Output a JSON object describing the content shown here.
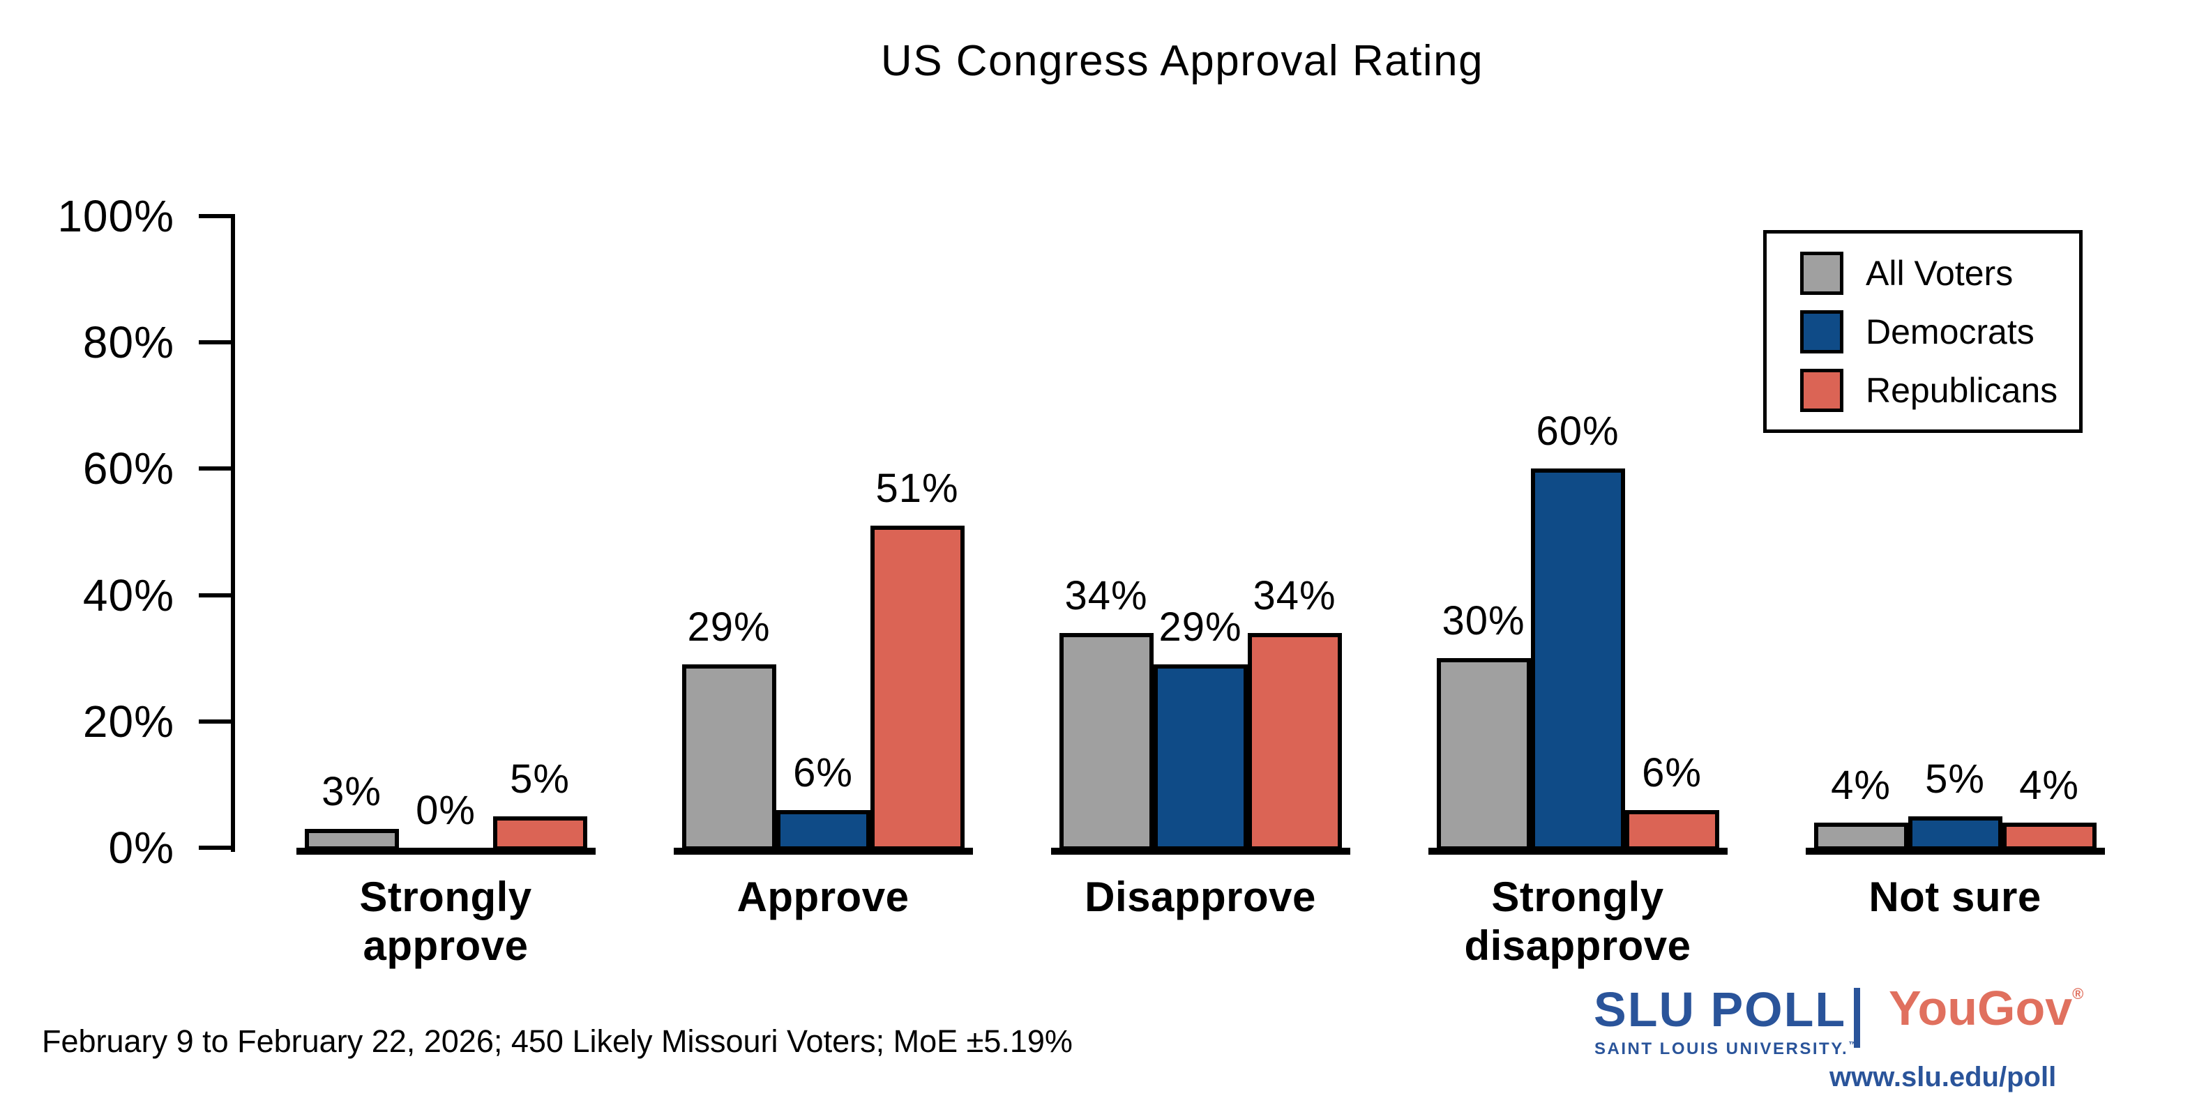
{
  "title": "US Congress Approval Rating",
  "footer": "February 9 to February 22, 2026; 450 Likely Missouri Voters; MoE ±5.19%",
  "legend": {
    "items": [
      "All Voters",
      "Democrats",
      "Republicans"
    ]
  },
  "branding": {
    "slu_word": "SLU",
    "poll_word": "POLL",
    "slu_sub": "SAINT LOUIS UNIVERSITY.",
    "slu_tm": "™",
    "separator_color": "#2A549A",
    "slu_blue": "#2A549A",
    "yougov": "YouGov",
    "yougov_reg": "®",
    "yougov_coral": "#E0705E",
    "url": "www.slu.edu/poll"
  },
  "chart_data": {
    "type": "bar",
    "title": "US Congress Approval Rating",
    "categories": [
      "Strongly approve",
      "Approve",
      "Disapprove",
      "Strongly disapprove",
      "Not sure"
    ],
    "series": [
      {
        "name": "All Voters",
        "color": "#A0A0A0",
        "values": [
          3,
          29,
          34,
          30,
          4
        ]
      },
      {
        "name": "Democrats",
        "color": "#0F4B87",
        "values": [
          0,
          6,
          29,
          60,
          5
        ]
      },
      {
        "name": "Republicans",
        "color": "#DB6455",
        "values": [
          5,
          51,
          34,
          6,
          4
        ]
      }
    ],
    "value_labels": [
      [
        "3%",
        "0%",
        "5%"
      ],
      [
        "29%",
        "6%",
        "51%"
      ],
      [
        "34%",
        "29%",
        "34%"
      ],
      [
        "30%",
        "60%",
        "6%"
      ],
      [
        "4%",
        "5%",
        "4%"
      ]
    ],
    "ylabel": "",
    "xlabel": "",
    "ylim": [
      0,
      100
    ],
    "ytick_values": [
      0,
      20,
      40,
      60,
      80,
      100
    ],
    "yticks": [
      "0%",
      "20%",
      "40%",
      "60%",
      "80%",
      "100%"
    ],
    "grid": false,
    "legend_position": "upper right",
    "bar_outline_color": "#000000"
  }
}
